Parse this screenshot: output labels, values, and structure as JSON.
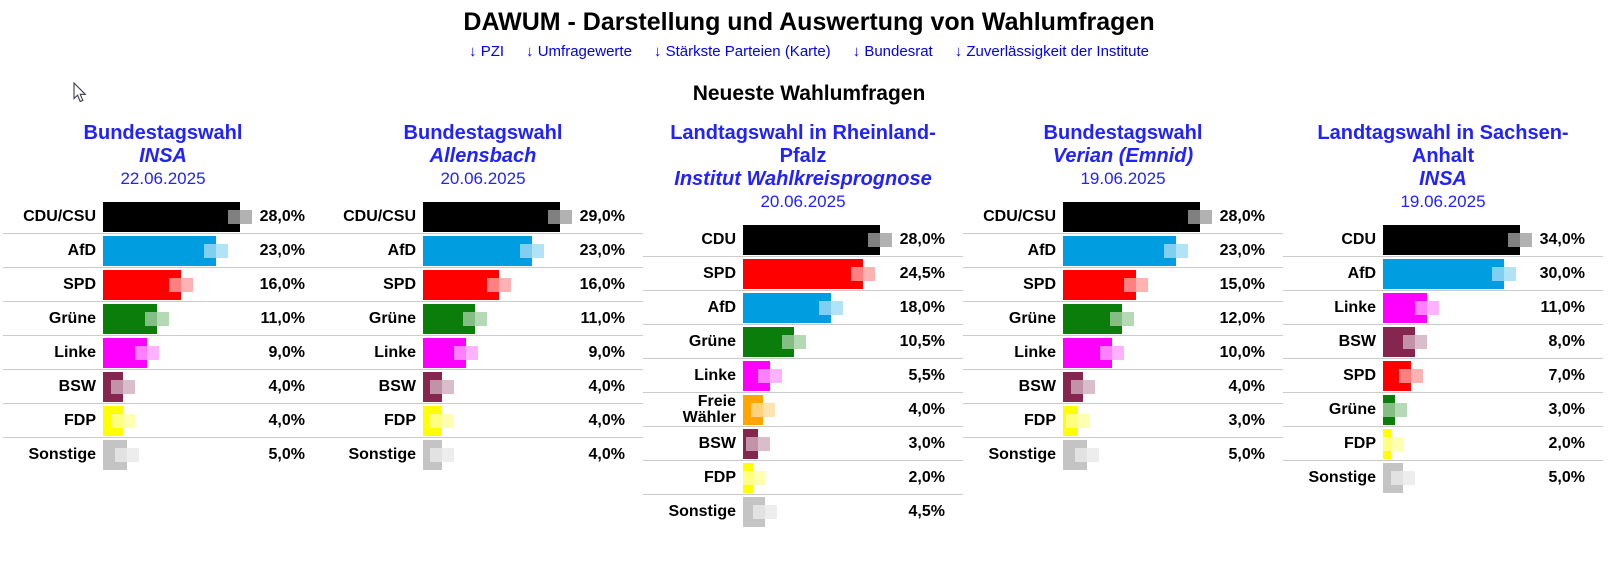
{
  "page": {
    "title": "DAWUM - Darstellung und Auswertung von Wahlumfragen",
    "nav_links": [
      "↓ PZI",
      "↓ Umfragewerte",
      "↓ Stärkste Parteien (Karte)",
      "↓ Bundesrat",
      "↓ Zuverlässigkeit der Institute"
    ],
    "section_title": "Neueste Wahlumfragen"
  },
  "colors": {
    "title_blue": "#2222FF",
    "link_blue": "#0000EE",
    "separator": "#CBCBCB"
  },
  "party_colors": {
    "CDU/CSU": "#000000",
    "CDU": "#000000",
    "AfD": "#009EE0",
    "SPD": "#FF0000",
    "Grüne": "#0A7D0A",
    "Linke": "#FF00FF",
    "BSW": "#85264F",
    "FDP": "#FFFF00",
    "Freie Wähler": "#FFA500",
    "Sonstige": "#C4C4C4"
  },
  "chart_data": [
    {
      "type": "bar",
      "title": "Bundestagswahl",
      "institute": "INSA",
      "date": "22.06.2025",
      "categories": [
        "CDU/CSU",
        "AfD",
        "SPD",
        "Grüne",
        "Linke",
        "BSW",
        "FDP",
        "Sonstige"
      ],
      "values": [
        28.0,
        23.0,
        16.0,
        11.0,
        9.0,
        4.0,
        4.0,
        5.0
      ],
      "value_labels": [
        "28,0%",
        "23,0%",
        "16,0%",
        "11,0%",
        "9,0%",
        "4,0%",
        "4,0%",
        "5,0%"
      ]
    },
    {
      "type": "bar",
      "title": "Bundestagswahl",
      "institute": "Allensbach",
      "date": "20.06.2025",
      "categories": [
        "CDU/CSU",
        "AfD",
        "SPD",
        "Grüne",
        "Linke",
        "BSW",
        "FDP",
        "Sonstige"
      ],
      "values": [
        29.0,
        23.0,
        16.0,
        11.0,
        9.0,
        4.0,
        4.0,
        4.0
      ],
      "value_labels": [
        "29,0%",
        "23,0%",
        "16,0%",
        "11,0%",
        "9,0%",
        "4,0%",
        "4,0%",
        "4,0%"
      ]
    },
    {
      "type": "bar",
      "title": "Landtagswahl in Rheinland-Pfalz",
      "institute": "Institut Wahlkreisprognose",
      "date": "20.06.2025",
      "categories": [
        "CDU",
        "SPD",
        "AfD",
        "Grüne",
        "Linke",
        "Freie Wähler",
        "BSW",
        "FDP",
        "Sonstige"
      ],
      "values": [
        28.0,
        24.5,
        18.0,
        10.5,
        5.5,
        4.0,
        3.0,
        2.0,
        4.5
      ],
      "value_labels": [
        "28,0%",
        "24,5%",
        "18,0%",
        "10,5%",
        "5,5%",
        "4,0%",
        "3,0%",
        "2,0%",
        "4,5%"
      ]
    },
    {
      "type": "bar",
      "title": "Bundestagswahl",
      "institute": "Verian (Emnid)",
      "date": "19.06.2025",
      "categories": [
        "CDU/CSU",
        "AfD",
        "SPD",
        "Grüne",
        "Linke",
        "BSW",
        "FDP",
        "Sonstige"
      ],
      "values": [
        28.0,
        23.0,
        15.0,
        12.0,
        10.0,
        4.0,
        3.0,
        5.0
      ],
      "value_labels": [
        "28,0%",
        "23,0%",
        "15,0%",
        "12,0%",
        "10,0%",
        "4,0%",
        "3,0%",
        "5,0%"
      ]
    },
    {
      "type": "bar",
      "title": "Landtagswahl in Sachsen-Anhalt",
      "institute": "INSA",
      "date": "19.06.2025",
      "categories": [
        "CDU",
        "AfD",
        "Linke",
        "BSW",
        "SPD",
        "Grüne",
        "FDP",
        "Sonstige"
      ],
      "values": [
        34.0,
        30.0,
        11.0,
        8.0,
        7.0,
        3.0,
        2.0,
        5.0
      ],
      "value_labels": [
        "34,0%",
        "30,0%",
        "11,0%",
        "8,0%",
        "7,0%",
        "3,0%",
        "2,0%",
        "5,0%"
      ]
    }
  ]
}
